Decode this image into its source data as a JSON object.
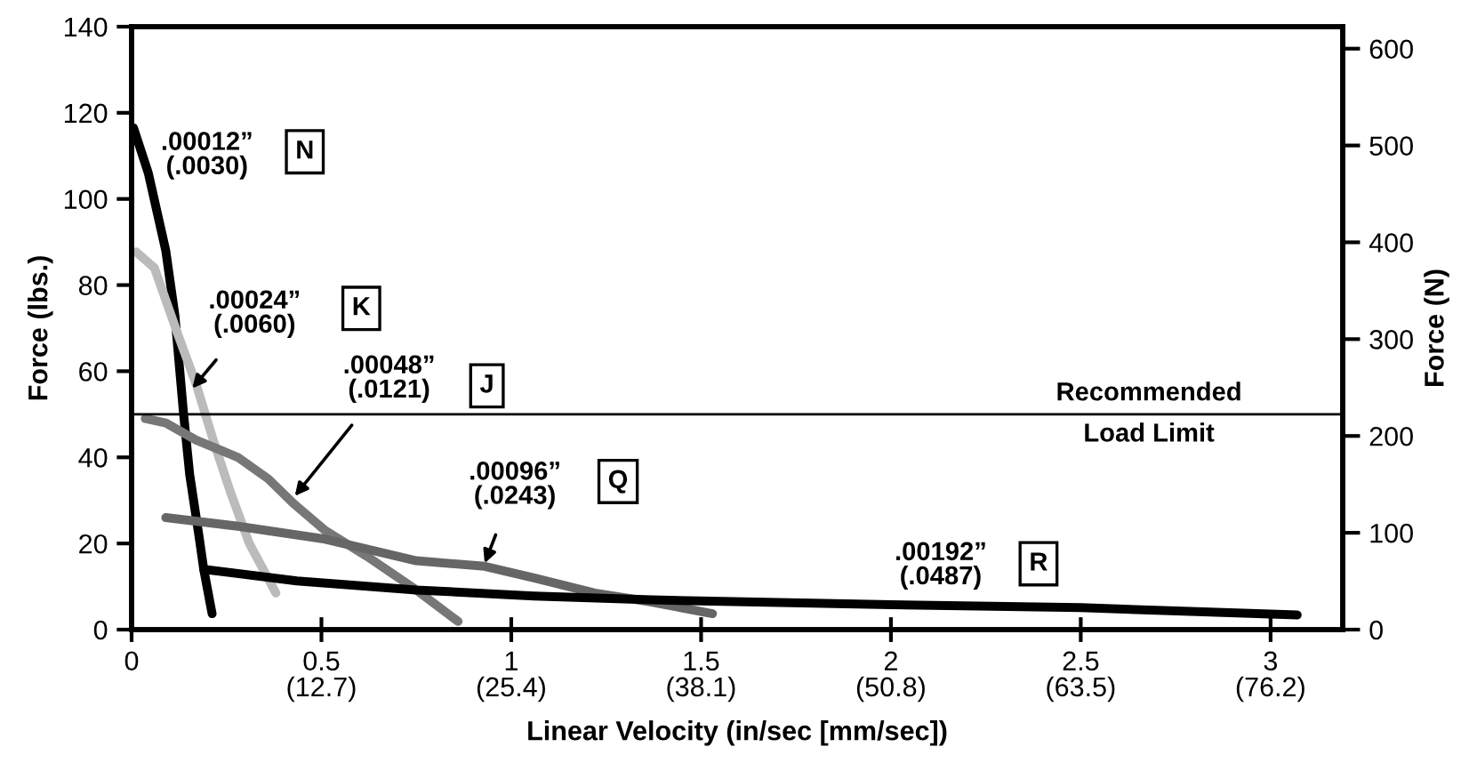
{
  "chart_data": {
    "type": "line",
    "xlabel": "Linear Velocity (in/sec [mm/sec])",
    "ylabel": "Force (lbs.)",
    "y2label": "Force (N)",
    "xlim": [
      0,
      3.19
    ],
    "xticks": [
      0,
      0.5,
      1,
      1.5,
      2,
      2.5,
      3
    ],
    "x2lim": [
      0,
      81.03
    ],
    "x2ticks": [
      {
        "value": 12.7,
        "label": "(12.7)"
      },
      {
        "value": 25.4,
        "label": "(25.4)"
      },
      {
        "value": 38.1,
        "label": "(38.1)"
      },
      {
        "value": 50.8,
        "label": "(50.8)"
      },
      {
        "value": 63.5,
        "label": "(63.5)"
      },
      {
        "value": 76.2,
        "label": "(76.2)"
      }
    ],
    "ylim": [
      0,
      140
    ],
    "yticks": [
      0,
      20,
      40,
      60,
      80,
      100,
      120,
      140
    ],
    "y2lim": [
      0,
      622.7
    ],
    "y2ticks": [
      0,
      100,
      200,
      300,
      400,
      500,
      600
    ],
    "grid": false,
    "legend": false,
    "marker": "none",
    "line_style": "solid",
    "series": [
      {
        "color": "#000000",
        "x": [
          0.005,
          0.044,
          0.09,
          0.114,
          0.137,
          0.153,
          0.177,
          0.19,
          0.212
        ],
        "values": [
          116.5,
          106,
          88,
          73,
          50,
          36,
          22,
          14,
          3.7
        ]
      },
      {
        "color": "#bbbbbb",
        "x": [
          0.012,
          0.06,
          0.12,
          0.17,
          0.215,
          0.26,
          0.31,
          0.38
        ],
        "values": [
          87.7,
          84,
          69,
          57,
          44,
          32,
          20,
          8.5
        ]
      },
      {
        "color": "#777777",
        "x": [
          0.036,
          0.09,
          0.17,
          0.28,
          0.36,
          0.43,
          0.51,
          0.62,
          0.75,
          0.86
        ],
        "values": [
          49,
          48,
          44,
          40,
          35,
          29,
          23,
          17,
          9.2,
          1.9
        ]
      },
      {
        "color": "#666666",
        "x": [
          0.09,
          0.28,
          0.51,
          0.75,
          0.93,
          1.06,
          1.22,
          1.37,
          1.53
        ],
        "values": [
          26,
          24,
          21,
          16,
          14.7,
          12,
          8.5,
          6.4,
          3.7
        ]
      },
      {
        "color": "#000000",
        "x": [
          0.19,
          0.435,
          0.75,
          1.06,
          1.37,
          2.0,
          2.5,
          3.07
        ],
        "values": [
          14,
          11.3,
          9.2,
          7.8,
          6.9,
          5.8,
          5.1,
          3.4
        ]
      }
    ],
    "annotations": [
      {
        "text": ".00012”\n(.0030)",
        "x": 0.044,
        "y": 106
      },
      "N",
      {
        "text": ".00024”\n(.0060)",
        "x": 0.16,
        "y": 56
      },
      "K",
      {
        "text": ".00048”\n(.0121)",
        "x": 0.43,
        "y": 31
      },
      "J",
      {
        "text": ".00096”\n(.0243)",
        "x": 0.93,
        "y": 15.4
      },
      "Q",
      {
        "text": ".00192”\n(.0487)",
        "x": 2.0,
        "y": 5.8
      },
      "R"
    ],
    "ref_lines": [
      {
        "axis": "y",
        "value": 50,
        "label": "Recommended\nLoad Limit",
        "color": "#000000",
        "line_style": "solid"
      }
    ]
  }
}
